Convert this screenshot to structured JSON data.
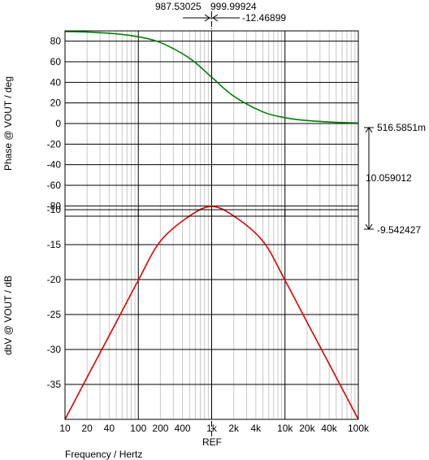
{
  "chart_data": [
    {
      "type": "line",
      "ylabel": "Phase @ VOUT / deg",
      "xlabel": "Frequency / Hertz",
      "x_scale": "log",
      "xlim": [
        10,
        100000
      ],
      "ylim": [
        -90,
        90
      ],
      "y_ticks": [
        80,
        60,
        40,
        20,
        0,
        -20,
        -40,
        -60,
        -80
      ],
      "grid": true,
      "series": [
        {
          "color": "#008000",
          "x": [
            10,
            20,
            50,
            100,
            200,
            500,
            1000,
            2000,
            5000,
            10000,
            20000,
            50000,
            100000
          ],
          "y": [
            89.4,
            88.9,
            87.1,
            84.3,
            78.7,
            63.4,
            45.0,
            26.6,
            11.3,
            5.7,
            2.9,
            1.1,
            0.6
          ]
        }
      ]
    },
    {
      "type": "line",
      "ylabel": "dbV @ VOUT / dB",
      "xlabel": "Frequency / Hertz",
      "x_scale": "log",
      "xlim": [
        10,
        100000
      ],
      "ylim": [
        -40,
        -10
      ],
      "y_ticks": [
        -10,
        -15,
        -20,
        -25,
        -30,
        -35
      ],
      "grid": true,
      "series": [
        {
          "color": "#e00000",
          "x": [
            10,
            20,
            50,
            100,
            200,
            500,
            1000,
            2000,
            5000,
            10000,
            20000,
            50000,
            100000
          ],
          "y": [
            -40.0,
            -34.0,
            -26.1,
            -20.1,
            -14.5,
            -10.9,
            -9.54,
            -10.9,
            -14.5,
            -20.1,
            -26.1,
            -34.0,
            -40.0
          ]
        }
      ]
    }
  ],
  "x_tick_labels": [
    "10",
    "20",
    "40",
    "100",
    "200",
    "400",
    "1k",
    "2k",
    "4k",
    "10k",
    "20k",
    "40k",
    "100k"
  ],
  "x_tick_values": [
    10,
    20,
    40,
    100,
    200,
    400,
    1000,
    2000,
    4000,
    10000,
    20000,
    40000,
    100000
  ],
  "cursor": {
    "x_value": 999.99924,
    "x_label": "999.99924",
    "left_value_label": "987.53025",
    "delta_label": "-12.46899",
    "ref_label": "REF"
  },
  "y_cursor": {
    "top_label": "516.5851m",
    "delta_label": "10.059012",
    "bottom_label": "-9.542427"
  }
}
